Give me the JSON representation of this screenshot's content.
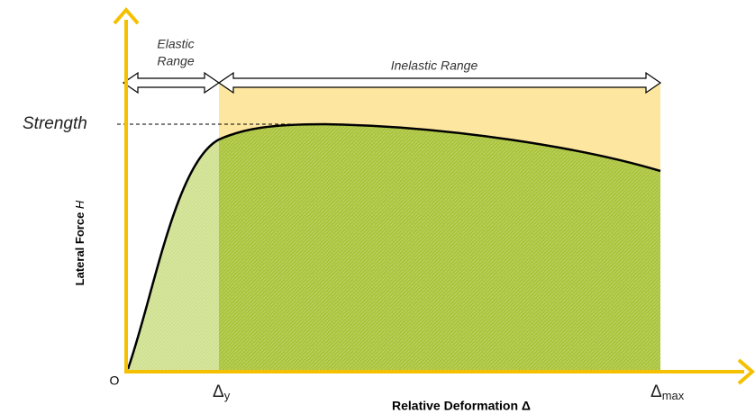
{
  "diagram": {
    "elastic_label": [
      "Elastic",
      "Range"
    ],
    "inelastic_label": "Inelastic Range",
    "strength_label": "Strength",
    "y_axis_label": {
      "text": "Lateral Force",
      "variable": "H"
    },
    "origin_label": "O",
    "yield_label": {
      "symbol": "Δ",
      "subscript": "y"
    },
    "max_label": {
      "symbol": "Δ",
      "subscript": "max"
    },
    "x_axis_label": "Relative Deformation Δ"
  }
}
